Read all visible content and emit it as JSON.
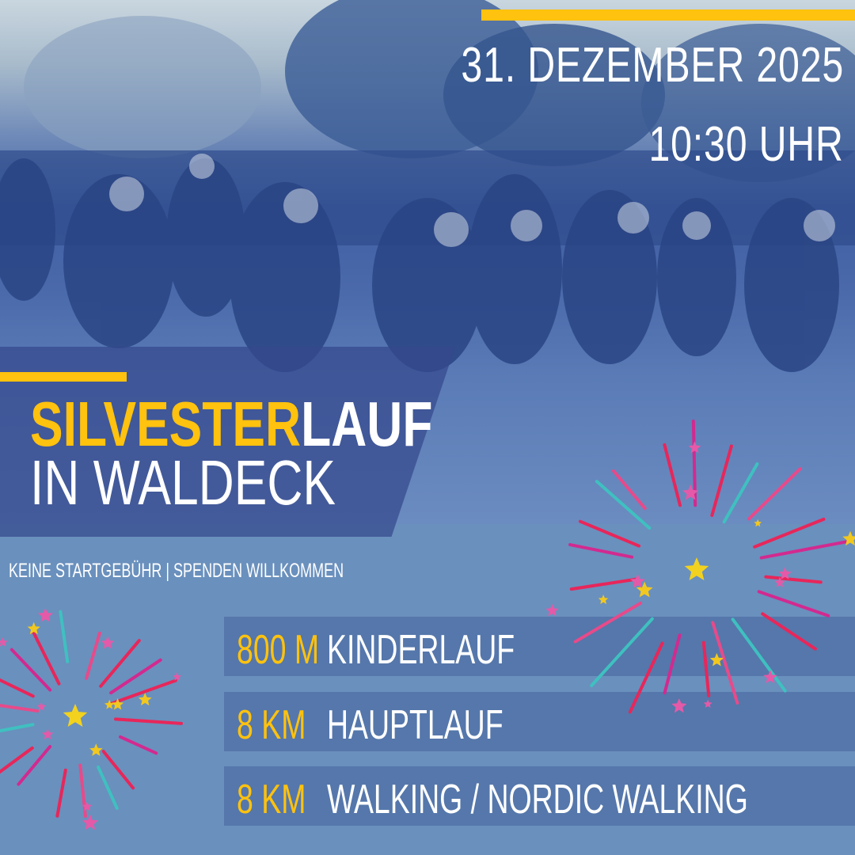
{
  "event": {
    "date": "31. DEZEMBER 2025",
    "time": "10:30 UHR",
    "title_highlight": "SILVESTER",
    "title_rest": "LAUF",
    "subtitle": "IN WALDECK",
    "note": "KEINE  STARTGEBÜHR | SPENDEN WILLKOMMEN"
  },
  "races": [
    {
      "distance": "800 M",
      "name": "KINDERLAUF"
    },
    {
      "distance": "8 KM",
      "name": "HAUPTLAUF"
    },
    {
      "distance": "8 KM",
      "name": "WALKING / NORDIC WALKING"
    }
  ],
  "colors": {
    "accent": "#ffc20e",
    "background": "#6a90bd",
    "row": "#5577ab",
    "panel": "#34488c"
  },
  "decorations": [
    "running-crowd-photo",
    "fireworks-icon"
  ]
}
